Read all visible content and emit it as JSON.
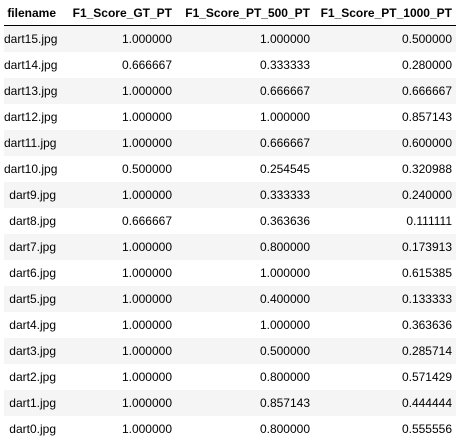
{
  "table": {
    "columns": [
      "filename",
      "F1_Score_GT_PT",
      "F1_Score_PT_500_PT",
      "F1_Score_PT_1000_PT"
    ],
    "rows": [
      [
        "dart15.jpg",
        "1.000000",
        "1.000000",
        "0.500000"
      ],
      [
        "dart14.jpg",
        "0.666667",
        "0.333333",
        "0.280000"
      ],
      [
        "dart13.jpg",
        "1.000000",
        "0.666667",
        "0.666667"
      ],
      [
        "dart12.jpg",
        "1.000000",
        "1.000000",
        "0.857143"
      ],
      [
        "dart11.jpg",
        "1.000000",
        "0.666667",
        "0.600000"
      ],
      [
        "dart10.jpg",
        "0.500000",
        "0.254545",
        "0.320988"
      ],
      [
        "dart9.jpg",
        "1.000000",
        "0.333333",
        "0.240000"
      ],
      [
        "dart8.jpg",
        "0.666667",
        "0.363636",
        "0.111111"
      ],
      [
        "dart7.jpg",
        "1.000000",
        "0.800000",
        "0.173913"
      ],
      [
        "dart6.jpg",
        "1.000000",
        "1.000000",
        "0.615385"
      ],
      [
        "dart5.jpg",
        "1.000000",
        "0.400000",
        "0.133333"
      ],
      [
        "dart4.jpg",
        "1.000000",
        "1.000000",
        "0.363636"
      ],
      [
        "dart3.jpg",
        "1.000000",
        "0.500000",
        "0.285714"
      ],
      [
        "dart2.jpg",
        "1.000000",
        "0.800000",
        "0.571429"
      ],
      [
        "dart1.jpg",
        "1.000000",
        "0.857143",
        "0.444444"
      ],
      [
        "dart0.jpg",
        "1.000000",
        "0.800000",
        "0.555556"
      ]
    ]
  },
  "colors": {
    "stripe": "#f5f5f5",
    "header_rule": "#000000"
  }
}
